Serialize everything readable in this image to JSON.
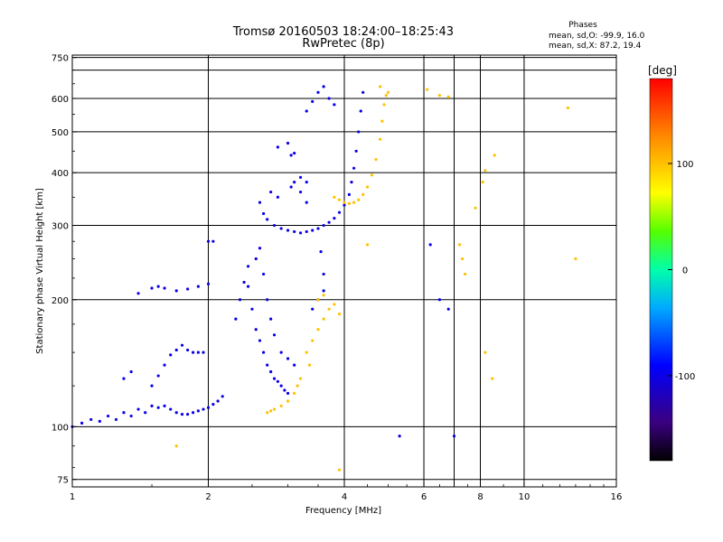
{
  "chart_data": {
    "type": "scatter",
    "title": "Tromsø 20160503 18:24:00–18:25:43",
    "subtitle": "RwPretec (8p)",
    "xlabel": "Frequency [MHz]",
    "ylabel": "Stationary phase Virtual Height [km]",
    "xscale": "log2",
    "yscale": "log",
    "xlim": [
      1,
      16
    ],
    "ylim": [
      72,
      760
    ],
    "x_ticks": [
      1,
      2,
      4,
      6,
      8,
      10,
      16
    ],
    "x_tick_labels": [
      "1",
      "2",
      "4",
      "6",
      "8",
      "10",
      "16"
    ],
    "x_extra_gridlines": [
      7
    ],
    "y_ticks": [
      75,
      100,
      200,
      300,
      400,
      500,
      600,
      750
    ],
    "y_tick_labels": [
      "75",
      "100",
      "200",
      "300",
      "400",
      "500",
      "600",
      "750"
    ],
    "y_extra_gridlines": [
      700
    ],
    "grid": true,
    "stats": {
      "heading": "Phases",
      "line_o": "mean, sd,O: -99.9, 16.0",
      "line_x": "mean, sd,X: 87.2, 19.4"
    },
    "colorbar": {
      "label": "[deg]",
      "range": [
        -180,
        180
      ],
      "ticks": [
        100,
        0,
        -100
      ],
      "tick_labels": [
        "100",
        "0",
        "-100"
      ]
    },
    "series": [
      {
        "mode": "O",
        "phase_deg": -100,
        "points": [
          [
            1.0,
            100
          ],
          [
            1.05,
            102
          ],
          [
            1.1,
            104
          ],
          [
            1.15,
            103
          ],
          [
            1.2,
            106
          ],
          [
            1.25,
            104
          ],
          [
            1.3,
            108
          ],
          [
            1.35,
            106
          ],
          [
            1.4,
            110
          ],
          [
            1.45,
            108
          ],
          [
            1.5,
            112
          ],
          [
            1.55,
            111
          ],
          [
            1.6,
            112
          ],
          [
            1.65,
            110
          ],
          [
            1.7,
            108
          ],
          [
            1.75,
            107
          ],
          [
            1.8,
            107
          ],
          [
            1.85,
            108
          ],
          [
            1.9,
            109
          ],
          [
            1.95,
            110
          ],
          [
            2.0,
            111
          ],
          [
            2.05,
            113
          ],
          [
            2.1,
            115
          ],
          [
            2.15,
            118
          ],
          [
            1.5,
            125
          ],
          [
            1.55,
            132
          ],
          [
            1.6,
            140
          ],
          [
            1.65,
            148
          ],
          [
            1.7,
            152
          ],
          [
            1.75,
            156
          ],
          [
            1.8,
            152
          ],
          [
            1.85,
            150
          ],
          [
            1.9,
            150
          ],
          [
            1.95,
            150
          ],
          [
            1.3,
            130
          ],
          [
            1.35,
            135
          ],
          [
            1.4,
            207
          ],
          [
            1.5,
            213
          ],
          [
            1.55,
            215
          ],
          [
            1.6,
            213
          ],
          [
            1.7,
            210
          ],
          [
            1.8,
            212
          ],
          [
            1.9,
            215
          ],
          [
            2.0,
            218
          ],
          [
            2.0,
            275
          ],
          [
            2.05,
            275
          ],
          [
            2.3,
            180
          ],
          [
            2.35,
            200
          ],
          [
            2.4,
            220
          ],
          [
            2.45,
            240
          ],
          [
            2.5,
            190
          ],
          [
            2.55,
            170
          ],
          [
            2.6,
            160
          ],
          [
            2.65,
            150
          ],
          [
            2.7,
            140
          ],
          [
            2.75,
            135
          ],
          [
            2.8,
            130
          ],
          [
            2.85,
            128
          ],
          [
            2.9,
            125
          ],
          [
            2.95,
            122
          ],
          [
            3.0,
            120
          ],
          [
            2.45,
            215
          ],
          [
            2.55,
            250
          ],
          [
            2.6,
            265
          ],
          [
            2.65,
            230
          ],
          [
            2.7,
            200
          ],
          [
            2.75,
            180
          ],
          [
            2.8,
            165
          ],
          [
            2.9,
            150
          ],
          [
            3.0,
            145
          ],
          [
            3.1,
            140
          ],
          [
            2.6,
            340
          ],
          [
            2.65,
            320
          ],
          [
            2.7,
            310
          ],
          [
            2.8,
            300
          ],
          [
            2.9,
            295
          ],
          [
            3.0,
            292
          ],
          [
            3.1,
            290
          ],
          [
            3.2,
            288
          ],
          [
            3.3,
            290
          ],
          [
            3.4,
            292
          ],
          [
            3.5,
            295
          ],
          [
            3.6,
            300
          ],
          [
            3.7,
            305
          ],
          [
            3.8,
            312
          ],
          [
            3.9,
            322
          ],
          [
            4.0,
            335
          ],
          [
            4.1,
            355
          ],
          [
            4.15,
            380
          ],
          [
            4.2,
            410
          ],
          [
            4.25,
            450
          ],
          [
            4.3,
            500
          ],
          [
            4.35,
            560
          ],
          [
            4.4,
            620
          ],
          [
            2.75,
            360
          ],
          [
            2.85,
            350
          ],
          [
            3.05,
            370
          ],
          [
            3.2,
            360
          ],
          [
            3.3,
            340
          ],
          [
            2.85,
            460
          ],
          [
            3.0,
            470
          ],
          [
            3.05,
            440
          ],
          [
            3.1,
            445
          ],
          [
            3.3,
            560
          ],
          [
            3.4,
            590
          ],
          [
            3.5,
            620
          ],
          [
            3.6,
            640
          ],
          [
            3.7,
            600
          ],
          [
            3.8,
            580
          ],
          [
            3.1,
            380
          ],
          [
            3.2,
            390
          ],
          [
            3.3,
            380
          ],
          [
            3.4,
            190
          ],
          [
            3.5,
            200
          ],
          [
            3.6,
            210
          ],
          [
            3.55,
            260
          ],
          [
            3.6,
            230
          ],
          [
            5.3,
            95
          ],
          [
            6.2,
            270
          ],
          [
            7.0,
            95
          ],
          [
            6.8,
            190
          ],
          [
            6.5,
            200
          ]
        ]
      },
      {
        "mode": "X",
        "phase_deg": 100,
        "points": [
          [
            3.4,
            160
          ],
          [
            3.5,
            170
          ],
          [
            3.6,
            180
          ],
          [
            3.7,
            190
          ],
          [
            3.8,
            195
          ],
          [
            3.9,
            185
          ],
          [
            3.5,
            200
          ],
          [
            3.6,
            205
          ],
          [
            3.3,
            150
          ],
          [
            3.35,
            140
          ],
          [
            3.1,
            120
          ],
          [
            3.15,
            125
          ],
          [
            3.2,
            130
          ],
          [
            3.0,
            115
          ],
          [
            2.9,
            112
          ],
          [
            2.8,
            110
          ],
          [
            2.75,
            109
          ],
          [
            2.7,
            108
          ],
          [
            3.8,
            350
          ],
          [
            3.9,
            345
          ],
          [
            4.0,
            340
          ],
          [
            4.1,
            338
          ],
          [
            4.2,
            340
          ],
          [
            4.3,
            345
          ],
          [
            4.4,
            355
          ],
          [
            4.5,
            370
          ],
          [
            4.6,
            395
          ],
          [
            4.7,
            430
          ],
          [
            4.8,
            480
          ],
          [
            4.85,
            530
          ],
          [
            4.9,
            580
          ],
          [
            4.95,
            610
          ],
          [
            4.5,
            270
          ],
          [
            4.8,
            640
          ],
          [
            5.0,
            620
          ],
          [
            6.1,
            630
          ],
          [
            6.5,
            610
          ],
          [
            6.8,
            605
          ],
          [
            7.2,
            270
          ],
          [
            7.3,
            250
          ],
          [
            7.4,
            230
          ],
          [
            7.8,
            330
          ],
          [
            8.1,
            380
          ],
          [
            8.2,
            405
          ],
          [
            8.6,
            440
          ],
          [
            12.5,
            570
          ],
          [
            13.0,
            250
          ],
          [
            8.5,
            130
          ],
          [
            8.2,
            150
          ],
          [
            1.7,
            90
          ],
          [
            3.9,
            79
          ]
        ]
      }
    ]
  }
}
